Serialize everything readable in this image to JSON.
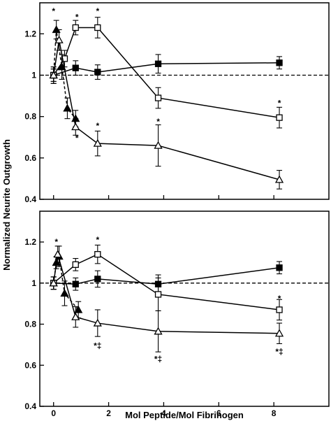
{
  "ylabel": "Normalized   Neurite   Outgrowth",
  "xlabel": "Mol   Peptide/Mol   Fibrinogen",
  "chart_data": [
    {
      "type": "line",
      "panel": "top",
      "xlim": [
        -0.5,
        10
      ],
      "ylim": [
        0.4,
        1.35
      ],
      "x_ticks": [
        0,
        2,
        4,
        6,
        8
      ],
      "x_tick_labels": [],
      "y_ticks": [
        0.4,
        0.6,
        0.8,
        1.0,
        1.2
      ],
      "y_tick_labels": [
        "0.4",
        "0.6",
        "0.8",
        "1",
        "1.2"
      ],
      "reference_line": 1.0,
      "series": [
        {
          "marker": "filled-square",
          "line": "solid",
          "x": [
            0,
            0.8,
            1.6,
            3.8,
            8.2
          ],
          "y": [
            1.0,
            1.035,
            1.015,
            1.055,
            1.06
          ],
          "err": [
            0.03,
            0.035,
            0.035,
            0.045,
            0.03
          ]
        },
        {
          "marker": "open-square",
          "line": "solid",
          "x": [
            0,
            0.4,
            0.8,
            1.6,
            3.8,
            8.2
          ],
          "y": [
            1.0,
            1.08,
            1.23,
            1.23,
            0.89,
            0.795
          ],
          "err": [
            0.03,
            0.04,
            0.035,
            0.05,
            0.05,
            0.05
          ]
        },
        {
          "marker": "filled-triangle",
          "line": "dashed",
          "x": [
            0,
            0.1,
            0.3,
            0.5,
            0.8
          ],
          "y": [
            1.0,
            1.22,
            1.04,
            0.84,
            0.79
          ],
          "err": [
            0.04,
            0.045,
            0.06,
            0.05,
            0.04
          ]
        },
        {
          "marker": "open-triangle",
          "line": "solid",
          "x": [
            0,
            0.2,
            0.8,
            1.6,
            3.8,
            8.2
          ],
          "y": [
            1.0,
            1.17,
            0.75,
            0.67,
            0.66,
            0.495
          ],
          "err": [
            0.04,
            0.05,
            0.04,
            0.06,
            0.1,
            0.045
          ]
        }
      ],
      "annotations": [
        {
          "x": 0.0,
          "y": 1.31,
          "text": "*"
        },
        {
          "x": 0.85,
          "y": 1.28,
          "text": "*"
        },
        {
          "x": 1.6,
          "y": 1.31,
          "text": "*"
        },
        {
          "x": 0.85,
          "y": 0.695,
          "text": "*"
        },
        {
          "x": 1.6,
          "y": 0.755,
          "text": "*"
        },
        {
          "x": 3.8,
          "y": 0.775,
          "text": "*"
        },
        {
          "x": 8.2,
          "y": 0.865,
          "text": "*"
        }
      ]
    },
    {
      "type": "line",
      "panel": "bottom",
      "xlim": [
        -0.5,
        10
      ],
      "ylim": [
        0.4,
        1.35
      ],
      "x_ticks": [
        0,
        2,
        4,
        6,
        8
      ],
      "x_tick_labels": [
        "0",
        "2",
        "4",
        "6",
        "8"
      ],
      "y_ticks": [
        0.4,
        0.6,
        0.8,
        1.0,
        1.2
      ],
      "y_tick_labels": [
        "0.4",
        "0.6",
        "0.8",
        "1",
        "1.2"
      ],
      "reference_line": 1.0,
      "series": [
        {
          "marker": "filled-square",
          "line": "solid",
          "x": [
            0,
            0.8,
            1.6,
            3.8,
            8.2
          ],
          "y": [
            1.0,
            0.995,
            1.02,
            0.995,
            1.075
          ],
          "err": [
            0.03,
            0.03,
            0.04,
            0.045,
            0.03
          ]
        },
        {
          "marker": "open-square",
          "line": "solid",
          "x": [
            0,
            0.8,
            1.6,
            3.8,
            8.2
          ],
          "y": [
            1.0,
            1.09,
            1.14,
            0.945,
            0.87
          ],
          "err": [
            0.03,
            0.03,
            0.045,
            0.08,
            0.05
          ]
        },
        {
          "marker": "filled-triangle",
          "line": "dashed",
          "x": [
            0,
            0.1,
            0.2,
            0.4,
            0.9
          ],
          "y": [
            1.0,
            1.1,
            1.13,
            0.95,
            0.87
          ],
          "err": [
            0.03,
            0.03,
            0.05,
            0.06,
            0.04
          ]
        },
        {
          "marker": "open-triangle",
          "line": "solid",
          "x": [
            0,
            0.15,
            0.8,
            1.6,
            3.8,
            8.2
          ],
          "y": [
            1.0,
            1.14,
            0.835,
            0.805,
            0.765,
            0.755
          ],
          "err": [
            0.03,
            0.04,
            0.05,
            0.065,
            0.1,
            0.05
          ]
        }
      ],
      "annotations": [
        {
          "x": 0.1,
          "y": 1.2,
          "text": "*"
        },
        {
          "x": 1.6,
          "y": 1.21,
          "text": "*"
        },
        {
          "x": 8.2,
          "y": 0.925,
          "text": "*"
        },
        {
          "x": 1.6,
          "y": 0.695,
          "text": "*‡"
        },
        {
          "x": 3.8,
          "y": 0.63,
          "text": "*‡"
        },
        {
          "x": 8.2,
          "y": 0.665,
          "text": "*‡"
        }
      ]
    }
  ]
}
